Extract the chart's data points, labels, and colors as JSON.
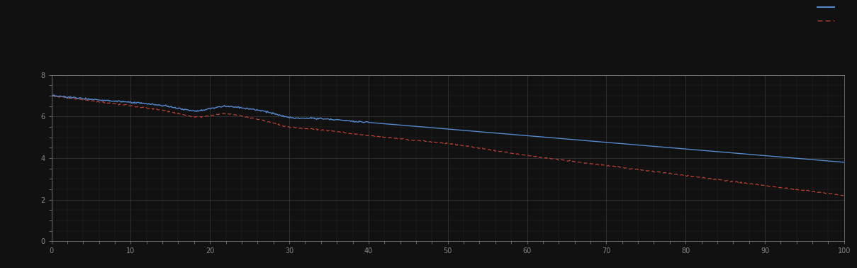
{
  "background_color": "#111111",
  "plot_bg_color": "#111111",
  "grid_color": "#3a3a3a",
  "blue_line_color": "#5588cc",
  "red_dashed_color": "#cc4433",
  "xlim": [
    0,
    100
  ],
  "ylim": [
    0,
    8
  ],
  "figsize": [
    12.09,
    3.78
  ],
  "dpi": 100,
  "tick_color": "#888888",
  "spine_color": "#888888"
}
